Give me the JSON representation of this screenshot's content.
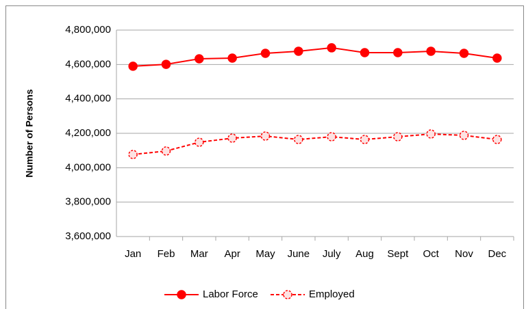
{
  "chart_data": {
    "type": "line",
    "y_label": "Number of Persons",
    "categories": [
      "Jan",
      "Feb",
      "Mar",
      "Apr",
      "May",
      "June",
      "July",
      "Aug",
      "Sept",
      "Oct",
      "Nov",
      "Dec"
    ],
    "series": [
      {
        "name": "Labor Force",
        "color": "#ff0000",
        "line_style": "solid",
        "marker": "filled",
        "values": [
          4590000,
          4601000,
          4633000,
          4637000,
          4665000,
          4677000,
          4697000,
          4669000,
          4669000,
          4677000,
          4665000,
          4637000
        ]
      },
      {
        "name": "Employed",
        "color": "#ff0000",
        "line_style": "dashed",
        "marker": "hollow",
        "values": [
          4077000,
          4097000,
          4148000,
          4172000,
          4184000,
          4164000,
          4180000,
          4164000,
          4180000,
          4196000,
          4188000,
          4164000
        ]
      }
    ],
    "ylim": [
      3600000,
      4800000
    ],
    "yticks": [
      {
        "value": 3600000,
        "label": "3,600,000"
      },
      {
        "value": 3800000,
        "label": "3,800,000"
      },
      {
        "value": 4000000,
        "label": "4,000,000"
      },
      {
        "value": 4200000,
        "label": "4,200,000"
      },
      {
        "value": 4400000,
        "label": "4,400,000"
      },
      {
        "value": 4600000,
        "label": "4,600,000"
      },
      {
        "value": 4800000,
        "label": "4,800,000"
      }
    ],
    "grid": true,
    "legend": "bottom"
  }
}
